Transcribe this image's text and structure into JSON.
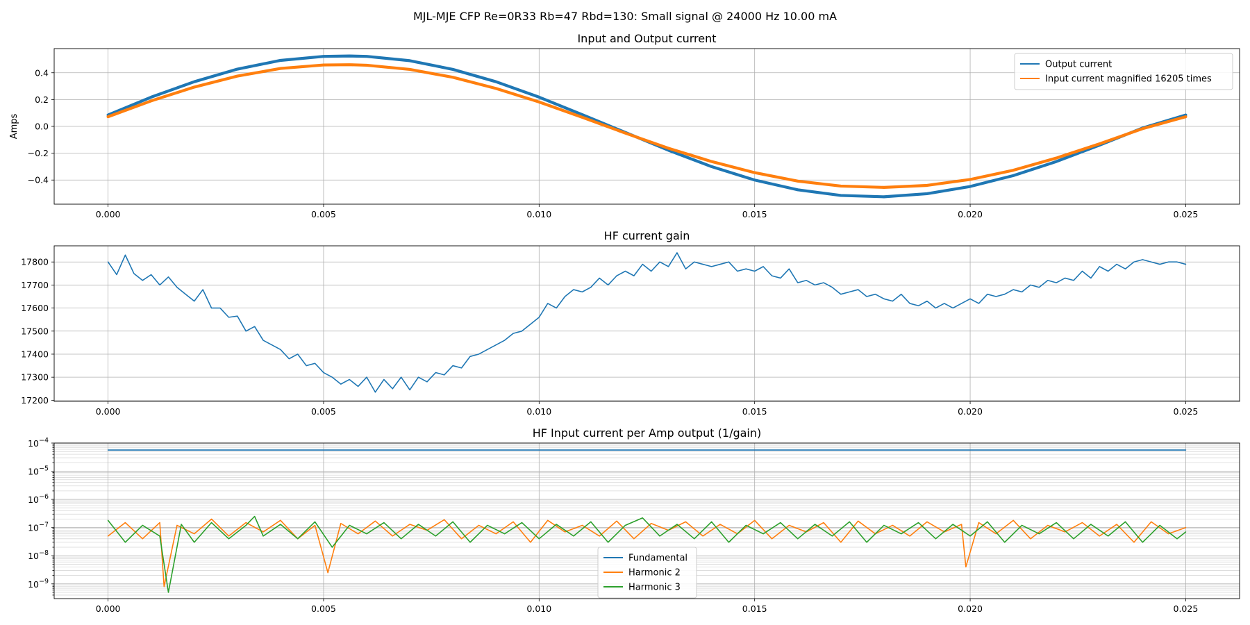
{
  "figure": {
    "suptitle": "MJL-MJE CFP Re=0R33 Rb=47 Rbd=130: Small signal @ 24000 Hz 10.00 mA"
  },
  "chart_data": [
    {
      "type": "line",
      "title": "Input and Output current",
      "xlabel": "",
      "ylabel": "Amps",
      "xlim": [
        -0.00125,
        0.02625
      ],
      "ylim": [
        -0.58,
        0.58
      ],
      "xticks": [
        0.0,
        0.005,
        0.01,
        0.015,
        0.02,
        0.025
      ],
      "xtick_labels": [
        "0.000",
        "0.005",
        "0.010",
        "0.015",
        "0.020",
        "0.025"
      ],
      "yticks": [
        -0.4,
        -0.2,
        0.0,
        0.2,
        0.4
      ],
      "ytick_labels": [
        "−0.4",
        "−0.2",
        "0.0",
        "0.2",
        "0.4"
      ],
      "grid": true,
      "legend": "top-right",
      "series": [
        {
          "name": "Output current",
          "color": "#1f77b4",
          "marker": "dot",
          "x": [
            0.0,
            0.001,
            0.002,
            0.003,
            0.004,
            0.005,
            0.0056,
            0.006,
            0.007,
            0.008,
            0.009,
            0.01,
            0.011,
            0.012,
            0.013,
            0.014,
            0.015,
            0.016,
            0.017,
            0.018,
            0.019,
            0.02,
            0.021,
            0.022,
            0.023,
            0.024,
            0.025
          ],
          "y": [
            0.085,
            0.218,
            0.333,
            0.427,
            0.492,
            0.522,
            0.525,
            0.522,
            0.49,
            0.425,
            0.333,
            0.218,
            0.088,
            -0.045,
            -0.178,
            -0.3,
            -0.4,
            -0.473,
            -0.515,
            -0.525,
            -0.502,
            -0.448,
            -0.367,
            -0.262,
            -0.14,
            -0.012,
            0.085
          ]
        },
        {
          "name": "Input current magnified 16205 times",
          "color": "#ff7f0e",
          "marker": "dot",
          "x": [
            0.0,
            0.001,
            0.002,
            0.003,
            0.004,
            0.005,
            0.0056,
            0.006,
            0.007,
            0.008,
            0.009,
            0.01,
            0.011,
            0.012,
            0.013,
            0.014,
            0.015,
            0.016,
            0.017,
            0.018,
            0.019,
            0.02,
            0.021,
            0.022,
            0.023,
            0.024,
            0.025
          ],
          "y": [
            0.072,
            0.19,
            0.293,
            0.375,
            0.432,
            0.458,
            0.46,
            0.456,
            0.425,
            0.366,
            0.283,
            0.182,
            0.068,
            -0.05,
            -0.163,
            -0.262,
            -0.345,
            -0.408,
            -0.445,
            -0.455,
            -0.44,
            -0.396,
            -0.327,
            -0.236,
            -0.13,
            -0.017,
            0.072
          ]
        }
      ]
    },
    {
      "type": "line",
      "title": "HF current gain",
      "xlabel": "",
      "ylabel": "",
      "xlim": [
        -0.00125,
        0.02625
      ],
      "ylim": [
        17195,
        17870
      ],
      "xticks": [
        0.0,
        0.005,
        0.01,
        0.015,
        0.02,
        0.025
      ],
      "xtick_labels": [
        "0.000",
        "0.005",
        "0.010",
        "0.015",
        "0.020",
        "0.025"
      ],
      "yticks": [
        17200,
        17300,
        17400,
        17500,
        17600,
        17700,
        17800
      ],
      "ytick_labels": [
        "17200",
        "17300",
        "17400",
        "17500",
        "17600",
        "17700",
        "17800"
      ],
      "grid": true,
      "series": [
        {
          "color": "#1f77b4",
          "x": [
            0.0,
            0.0002,
            0.0004,
            0.0006,
            0.0008,
            0.001,
            0.0012,
            0.0014,
            0.0016,
            0.0018,
            0.002,
            0.0022,
            0.0024,
            0.0026,
            0.0028,
            0.003,
            0.0032,
            0.0034,
            0.0036,
            0.0038,
            0.004,
            0.0042,
            0.0044,
            0.0046,
            0.0048,
            0.005,
            0.0052,
            0.0054,
            0.0056,
            0.0058,
            0.006,
            0.0062,
            0.0064,
            0.0066,
            0.0068,
            0.007,
            0.0072,
            0.0074,
            0.0076,
            0.0078,
            0.008,
            0.0082,
            0.0084,
            0.0086,
            0.0088,
            0.009,
            0.0092,
            0.0094,
            0.0096,
            0.0098,
            0.01,
            0.0102,
            0.0104,
            0.0106,
            0.0108,
            0.011,
            0.0112,
            0.0114,
            0.0116,
            0.0118,
            0.012,
            0.0122,
            0.0124,
            0.0126,
            0.0128,
            0.013,
            0.0132,
            0.0134,
            0.0136,
            0.0138,
            0.014,
            0.0142,
            0.0144,
            0.0146,
            0.0148,
            0.015,
            0.0152,
            0.0154,
            0.0156,
            0.0158,
            0.016,
            0.0162,
            0.0164,
            0.0166,
            0.0168,
            0.017,
            0.0172,
            0.0174,
            0.0176,
            0.0178,
            0.018,
            0.0182,
            0.0184,
            0.0186,
            0.0188,
            0.019,
            0.0192,
            0.0194,
            0.0196,
            0.0198,
            0.02,
            0.0202,
            0.0204,
            0.0206,
            0.0208,
            0.021,
            0.0212,
            0.0214,
            0.0216,
            0.0218,
            0.022,
            0.0222,
            0.0224,
            0.0226,
            0.0228,
            0.023,
            0.0232,
            0.0234,
            0.0236,
            0.0238,
            0.024,
            0.0242,
            0.0244,
            0.0246,
            0.0248,
            0.025
          ],
          "y": [
            17800,
            17745,
            17830,
            17750,
            17720,
            17745,
            17700,
            17735,
            17690,
            17660,
            17630,
            17680,
            17600,
            17600,
            17560,
            17565,
            17500,
            17520,
            17460,
            17440,
            17420,
            17380,
            17400,
            17350,
            17360,
            17320,
            17300,
            17270,
            17290,
            17260,
            17300,
            17235,
            17290,
            17250,
            17300,
            17245,
            17300,
            17280,
            17320,
            17310,
            17350,
            17340,
            17390,
            17400,
            17420,
            17440,
            17460,
            17490,
            17500,
            17530,
            17560,
            17620,
            17600,
            17650,
            17680,
            17670,
            17690,
            17730,
            17700,
            17740,
            17760,
            17740,
            17790,
            17760,
            17800,
            17780,
            17840,
            17770,
            17800,
            17790,
            17780,
            17790,
            17800,
            17760,
            17770,
            17760,
            17780,
            17740,
            17730,
            17770,
            17710,
            17720,
            17700,
            17710,
            17690,
            17660,
            17670,
            17680,
            17650,
            17660,
            17640,
            17630,
            17660,
            17620,
            17610,
            17630,
            17600,
            17620,
            17600,
            17620,
            17640,
            17620,
            17660,
            17650,
            17660,
            17680,
            17670,
            17700,
            17690,
            17720,
            17710,
            17730,
            17720,
            17760,
            17730,
            17780,
            17760,
            17790,
            17770,
            17800,
            17810,
            17800,
            17790,
            17800,
            17800,
            17790
          ]
        }
      ]
    },
    {
      "type": "line",
      "title": "HF Input current per Amp output (1/gain)",
      "xlabel": "",
      "ylabel": "",
      "yscale": "log",
      "xlim": [
        -0.00125,
        0.02625
      ],
      "ylim": [
        3e-10,
        0.0001
      ],
      "xticks": [
        0.0,
        0.005,
        0.01,
        0.015,
        0.02,
        0.025
      ],
      "xtick_labels": [
        "0.000",
        "0.005",
        "0.010",
        "0.015",
        "0.020",
        "0.025"
      ],
      "ytick_labels": [
        {
          "base": "10",
          "exp": "−9"
        },
        {
          "base": "10",
          "exp": "−8"
        },
        {
          "base": "10",
          "exp": "−7"
        },
        {
          "base": "10",
          "exp": "−6"
        },
        {
          "base": "10",
          "exp": "−5"
        },
        {
          "base": "10",
          "exp": "−4"
        }
      ],
      "yticks": [
        1e-09,
        1e-08,
        1e-07,
        1e-06,
        1e-05,
        0.0001
      ],
      "grid": true,
      "legend": "lower-center",
      "series": [
        {
          "name": "Fundamental",
          "color": "#1f77b4",
          "x": [
            0.0,
            0.025
          ],
          "y": [
            5.65e-05,
            5.65e-05
          ]
        },
        {
          "name": "Harmonic 2",
          "color": "#ff7f0e",
          "x": [
            0.0,
            0.0004,
            0.0008,
            0.0012,
            0.0013,
            0.0016,
            0.002,
            0.0024,
            0.0028,
            0.0032,
            0.0036,
            0.004,
            0.0044,
            0.0048,
            0.0051,
            0.0054,
            0.0058,
            0.0062,
            0.0066,
            0.007,
            0.0074,
            0.0078,
            0.0082,
            0.0086,
            0.009,
            0.0094,
            0.0098,
            0.0102,
            0.0106,
            0.011,
            0.0114,
            0.0118,
            0.0122,
            0.0126,
            0.013,
            0.0134,
            0.0138,
            0.0142,
            0.0146,
            0.015,
            0.0154,
            0.0158,
            0.0162,
            0.0166,
            0.017,
            0.0174,
            0.0178,
            0.0182,
            0.0186,
            0.019,
            0.0194,
            0.0198,
            0.0199,
            0.0202,
            0.0206,
            0.021,
            0.0214,
            0.0218,
            0.0222,
            0.0226,
            0.023,
            0.0234,
            0.0238,
            0.0242,
            0.0246,
            0.025
          ],
          "y": [
            5e-08,
            1.5e-07,
            4e-08,
            1.5e-07,
            8e-10,
            1.2e-07,
            6e-08,
            2e-07,
            5e-08,
            1.5e-07,
            7e-08,
            1.8e-07,
            4e-08,
            1.2e-07,
            2.5e-09,
            1.4e-07,
            6e-08,
            1.7e-07,
            5e-08,
            1.3e-07,
            8e-08,
            1.9e-07,
            4e-08,
            1.2e-07,
            6e-08,
            1.6e-07,
            3e-08,
            1.8e-07,
            7e-08,
            1.2e-07,
            5e-08,
            1.7e-07,
            4e-08,
            1.4e-07,
            8e-08,
            1.6e-07,
            5e-08,
            1.3e-07,
            6e-08,
            1.8e-07,
            4e-08,
            1.2e-07,
            7e-08,
            1.5e-07,
            3e-08,
            1.7e-07,
            6e-08,
            1.2e-07,
            5e-08,
            1.6e-07,
            7e-08,
            1.3e-07,
            4e-09,
            1.5e-07,
            6e-08,
            1.8e-07,
            4e-08,
            1.2e-07,
            7e-08,
            1.5e-07,
            5e-08,
            1.3e-07,
            3e-08,
            1.6e-07,
            6e-08,
            1e-07
          ]
        },
        {
          "name": "Harmonic 3",
          "color": "#2ca02c",
          "x": [
            0.0,
            0.0004,
            0.0008,
            0.0012,
            0.0014,
            0.0017,
            0.002,
            0.0024,
            0.0028,
            0.0032,
            0.0034,
            0.0036,
            0.004,
            0.0044,
            0.0048,
            0.0052,
            0.0056,
            0.006,
            0.0064,
            0.0068,
            0.0072,
            0.0076,
            0.008,
            0.0084,
            0.0088,
            0.0092,
            0.0096,
            0.01,
            0.0104,
            0.0108,
            0.0112,
            0.0116,
            0.012,
            0.0124,
            0.0128,
            0.0132,
            0.0136,
            0.014,
            0.0144,
            0.0148,
            0.0152,
            0.0156,
            0.016,
            0.0164,
            0.0168,
            0.0172,
            0.0176,
            0.018,
            0.0184,
            0.0188,
            0.0192,
            0.0196,
            0.02,
            0.0204,
            0.0208,
            0.0212,
            0.0216,
            0.022,
            0.0224,
            0.0228,
            0.0232,
            0.0236,
            0.024,
            0.0244,
            0.0248,
            0.025
          ],
          "y": [
            1.8e-07,
            3e-08,
            1.2e-07,
            5e-08,
            5e-10,
            1.3e-07,
            3e-08,
            1.5e-07,
            4e-08,
            1.2e-07,
            2.5e-07,
            5e-08,
            1.3e-07,
            4e-08,
            1.6e-07,
            2e-08,
            1.2e-07,
            6e-08,
            1.5e-07,
            4e-08,
            1.3e-07,
            5e-08,
            1.6e-07,
            3e-08,
            1.2e-07,
            6e-08,
            1.5e-07,
            4e-08,
            1.3e-07,
            5e-08,
            1.6e-07,
            3e-08,
            1.2e-07,
            2.2e-07,
            5e-08,
            1.3e-07,
            4e-08,
            1.6e-07,
            3e-08,
            1.2e-07,
            6e-08,
            1.5e-07,
            4e-08,
            1.3e-07,
            5e-08,
            1.6e-07,
            3e-08,
            1.2e-07,
            6e-08,
            1.5e-07,
            4e-08,
            1.3e-07,
            5e-08,
            1.6e-07,
            3e-08,
            1.2e-07,
            6e-08,
            1.5e-07,
            4e-08,
            1.3e-07,
            5e-08,
            1.6e-07,
            3e-08,
            1.2e-07,
            4e-08,
            7e-08
          ]
        }
      ]
    }
  ]
}
